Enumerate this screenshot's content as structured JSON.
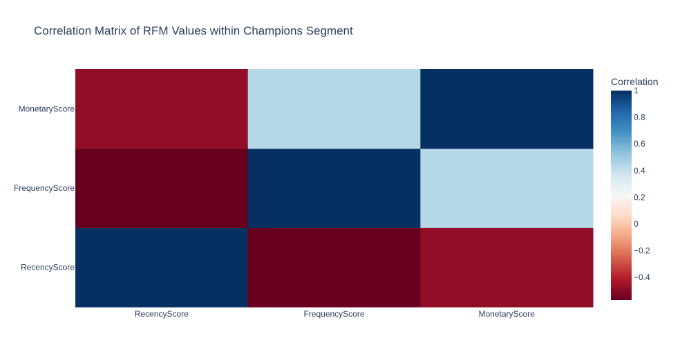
{
  "chart_data": {
    "type": "heatmap",
    "title": "Correlation Matrix of RFM Values within Champions Segment",
    "x_categories": [
      "RecencyScore",
      "FrequencyScore",
      "MonetaryScore"
    ],
    "y_categories": [
      "RecencyScore",
      "FrequencyScore",
      "MonetaryScore"
    ],
    "z": [
      [
        1.0,
        -0.57,
        -0.48
      ],
      [
        -0.57,
        1.0,
        0.44
      ],
      [
        -0.48,
        0.44,
        1.0
      ]
    ],
    "zmin": -0.57,
    "zmax": 1.0,
    "colorscale": "RdBu",
    "colorbar": {
      "title": "Correlation",
      "ticks": [
        -0.4,
        -0.2,
        0,
        0.2,
        0.4,
        0.6,
        0.8,
        1
      ],
      "tick_labels": [
        "−0.4",
        "−0.2",
        "0",
        "0.2",
        "0.4",
        "0.6",
        "0.8",
        "1"
      ]
    },
    "colors": {
      "scale": [
        "#67001f",
        "#b2182b",
        "#d6604d",
        "#f4a582",
        "#fddbc7",
        "#f7f7f7",
        "#d1e5f0",
        "#92c5de",
        "#4393c3",
        "#2166ac",
        "#053061"
      ],
      "text": "#2a3f5f"
    }
  }
}
